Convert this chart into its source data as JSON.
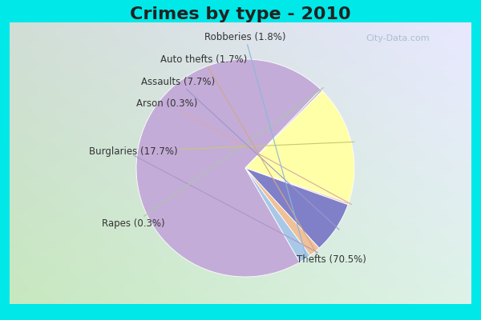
{
  "title": "Crimes by type - 2010",
  "title_fontsize": 16,
  "title_fontweight": "bold",
  "slices": [
    {
      "label": "Thefts (70.5%)",
      "value": 70.5,
      "color": "#C4ACD8"
    },
    {
      "label": "Rapes (0.3%)",
      "value": 0.3,
      "color": "#C4ACD8"
    },
    {
      "label": "Burglaries (17.7%)",
      "value": 17.7,
      "color": "#FFFFA8"
    },
    {
      "label": "Arson (0.3%)",
      "value": 0.3,
      "color": "#F4C8B8"
    },
    {
      "label": "Assaults (7.7%)",
      "value": 7.7,
      "color": "#8080C8"
    },
    {
      "label": "Auto thefts (1.7%)",
      "value": 1.7,
      "color": "#F0C098"
    },
    {
      "label": "Robberies (1.8%)",
      "value": 1.8,
      "color": "#A8C8E8"
    }
  ],
  "ordered_labels": [
    "Thefts (70.5%)",
    "Rapes (0.3%)",
    "Burglaries (17.7%)",
    "Arson (0.3%)",
    "Assaults (7.7%)",
    "Auto thefts (1.7%)",
    "Robberies (1.8%)"
  ],
  "bg_cyan": "#00E8E8",
  "label_fontsize": 8.5,
  "label_color": "#333333",
  "watermark": "City-Data.com"
}
